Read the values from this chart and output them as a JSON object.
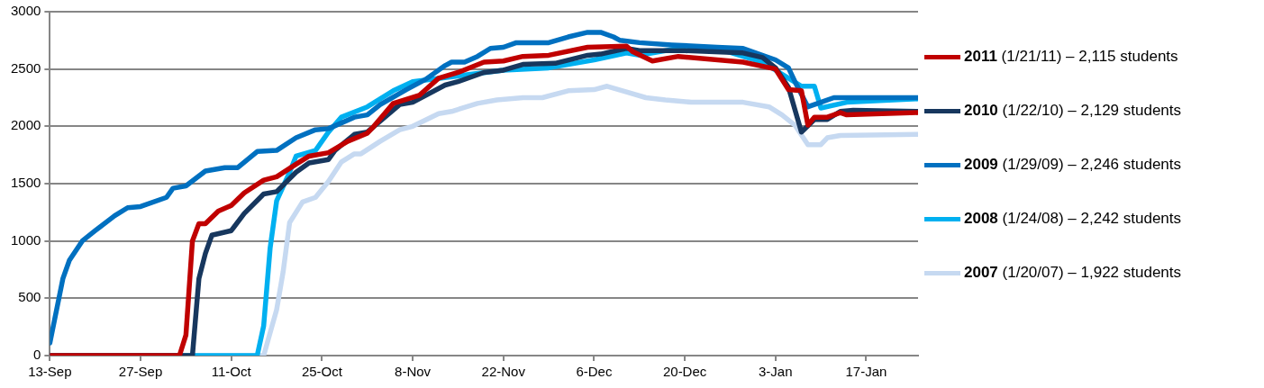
{
  "chart_data": {
    "type": "line",
    "xlim": [
      "2010-09-13",
      "2011-01-25"
    ],
    "ylim": [
      0,
      3000
    ],
    "xticks": [
      {
        "value": "2010-09-13",
        "label": "13-Sep"
      },
      {
        "value": "2010-09-27",
        "label": "27-Sep"
      },
      {
        "value": "2010-10-11",
        "label": "11-Oct"
      },
      {
        "value": "2010-10-25",
        "label": "25-Oct"
      },
      {
        "value": "2010-11-08",
        "label": "8-Nov"
      },
      {
        "value": "2010-11-22",
        "label": "22-Nov"
      },
      {
        "value": "2010-12-06",
        "label": "6-Dec"
      },
      {
        "value": "2010-12-20",
        "label": "20-Dec"
      },
      {
        "value": "2011-01-03",
        "label": "3-Jan"
      },
      {
        "value": "2011-01-17",
        "label": "17-Jan"
      }
    ],
    "yticks": [
      0,
      500,
      1000,
      1500,
      2000,
      2500,
      3000
    ],
    "grid": "y",
    "legend": "right",
    "line_style": "solid",
    "series": [
      {
        "name": "2011 (1/21/11) – 2,115 students",
        "color": "#c00000",
        "x": [
          "2010-09-13",
          "2010-10-03",
          "2010-10-04",
          "2010-10-05",
          "2010-10-06",
          "2010-10-07",
          "2010-10-09",
          "2010-10-11",
          "2010-10-13",
          "2010-10-16",
          "2010-10-18",
          "2010-10-21",
          "2010-10-23",
          "2010-10-26",
          "2010-10-29",
          "2010-11-01",
          "2010-11-02",
          "2010-11-05",
          "2010-11-09",
          "2010-11-12",
          "2010-11-15",
          "2010-11-19",
          "2010-11-22",
          "2010-11-25",
          "2010-11-29",
          "2010-12-05",
          "2010-12-11",
          "2010-12-12",
          "2010-12-15",
          "2010-12-19",
          "2010-12-29",
          "2011-01-03",
          "2011-01-05",
          "2011-01-07",
          "2011-01-08",
          "2011-01-09",
          "2011-01-11",
          "2011-01-13",
          "2011-01-14",
          "2011-01-25"
        ],
        "values": [
          0,
          0,
          180,
          1000,
          1150,
          1150,
          1260,
          1310,
          1420,
          1530,
          1560,
          1670,
          1740,
          1770,
          1870,
          1940,
          2000,
          2200,
          2270,
          2420,
          2470,
          2560,
          2570,
          2610,
          2620,
          2690,
          2700,
          2650,
          2570,
          2610,
          2560,
          2500,
          2320,
          2310,
          2010,
          2080,
          2080,
          2120,
          2100,
          2120
        ]
      },
      {
        "name": "2010 (1/22/10) – 2,129 students",
        "color": "#17375e",
        "x": [
          "2010-09-13",
          "2010-10-05",
          "2010-10-06",
          "2010-10-07",
          "2010-10-08",
          "2010-10-11",
          "2010-10-13",
          "2010-10-16",
          "2010-10-18",
          "2010-10-21",
          "2010-10-23",
          "2010-10-26",
          "2010-10-27",
          "2010-10-30",
          "2010-11-01",
          "2010-11-06",
          "2010-11-08",
          "2010-11-13",
          "2010-11-15",
          "2010-11-19",
          "2010-11-22",
          "2010-11-25",
          "2010-11-30",
          "2010-12-05",
          "2010-12-07",
          "2010-12-11",
          "2010-12-13",
          "2010-12-20",
          "2010-12-29",
          "2011-01-01",
          "2011-01-03",
          "2011-01-05",
          "2011-01-07",
          "2011-01-09",
          "2011-01-11",
          "2011-01-13",
          "2011-01-15",
          "2011-01-25"
        ],
        "values": [
          0,
          0,
          670,
          890,
          1050,
          1090,
          1240,
          1410,
          1430,
          1600,
          1680,
          1710,
          1790,
          1930,
          1950,
          2190,
          2210,
          2360,
          2390,
          2470,
          2490,
          2540,
          2550,
          2620,
          2630,
          2680,
          2660,
          2660,
          2640,
          2600,
          2510,
          2340,
          1950,
          2060,
          2060,
          2130,
          2140,
          2130
        ]
      },
      {
        "name": "2009 (1/29/09) – 2,246 students",
        "color": "#0070c0",
        "x": [
          "2010-09-13",
          "2010-09-15",
          "2010-09-16",
          "2010-09-18",
          "2010-09-20",
          "2010-09-23",
          "2010-09-25",
          "2010-09-27",
          "2010-10-01",
          "2010-10-02",
          "2010-10-04",
          "2010-10-07",
          "2010-10-10",
          "2010-10-12",
          "2010-10-15",
          "2010-10-18",
          "2010-10-21",
          "2010-10-24",
          "2010-10-26",
          "2010-10-30",
          "2010-11-01",
          "2010-11-03",
          "2010-11-07",
          "2010-11-10",
          "2010-11-13",
          "2010-11-14",
          "2010-11-16",
          "2010-11-18",
          "2010-11-20",
          "2010-11-22",
          "2010-11-24",
          "2010-11-27",
          "2010-11-29",
          "2010-12-02",
          "2010-12-05",
          "2010-12-07",
          "2010-12-09",
          "2010-12-10",
          "2010-12-13",
          "2010-12-18",
          "2010-12-25",
          "2010-12-29",
          "2011-01-03",
          "2011-01-05",
          "2011-01-06",
          "2011-01-08",
          "2011-01-10",
          "2011-01-12",
          "2011-01-15",
          "2011-01-25"
        ],
        "values": [
          110,
          670,
          830,
          1000,
          1090,
          1220,
          1290,
          1300,
          1380,
          1460,
          1480,
          1610,
          1640,
          1640,
          1780,
          1790,
          1900,
          1970,
          1980,
          2080,
          2100,
          2190,
          2320,
          2410,
          2530,
          2560,
          2560,
          2610,
          2680,
          2690,
          2730,
          2730,
          2730,
          2780,
          2820,
          2820,
          2780,
          2750,
          2730,
          2710,
          2690,
          2680,
          2580,
          2510,
          2390,
          2170,
          2210,
          2250,
          2250,
          2250
        ]
      },
      {
        "name": "2008 (1/24/08) – 2,242 students",
        "color": "#00b0f0",
        "x": [
          "2010-09-13",
          "2010-10-15",
          "2010-10-16",
          "2010-10-17",
          "2010-10-18",
          "2010-10-20",
          "2010-10-21",
          "2010-10-24",
          "2010-10-26",
          "2010-10-28",
          "2010-11-01",
          "2010-11-05",
          "2010-11-08",
          "2010-11-22",
          "2010-11-29",
          "2010-12-06",
          "2010-12-11",
          "2010-12-13",
          "2010-12-19",
          "2010-12-25",
          "2011-01-01",
          "2011-01-05",
          "2011-01-07",
          "2011-01-09",
          "2011-01-10",
          "2011-01-14",
          "2011-01-25"
        ],
        "values": [
          0,
          0,
          260,
          940,
          1350,
          1600,
          1740,
          1790,
          1950,
          2080,
          2170,
          2310,
          2390,
          2490,
          2510,
          2580,
          2640,
          2620,
          2680,
          2680,
          2560,
          2420,
          2350,
          2350,
          2160,
          2210,
          2240
        ]
      },
      {
        "name": "2007 (1/20/07) – 1,922 students",
        "color": "#c6d9f1",
        "x": [
          "2010-09-13",
          "2010-10-16",
          "2010-10-18",
          "2010-10-19",
          "2010-10-20",
          "2010-10-22",
          "2010-10-24",
          "2010-10-26",
          "2010-10-28",
          "2010-10-30",
          "2010-10-31",
          "2010-11-03",
          "2010-11-06",
          "2010-11-08",
          "2010-11-12",
          "2010-11-14",
          "2010-11-18",
          "2010-11-21",
          "2010-11-25",
          "2010-11-28",
          "2010-12-02",
          "2010-12-06",
          "2010-12-08",
          "2010-12-11",
          "2010-12-14",
          "2010-12-17",
          "2010-12-21",
          "2010-12-29",
          "2011-01-02",
          "2011-01-04",
          "2011-01-06",
          "2011-01-08",
          "2011-01-10",
          "2011-01-11",
          "2011-01-13",
          "2011-01-25"
        ],
        "values": [
          0,
          0,
          400,
          730,
          1160,
          1340,
          1380,
          1520,
          1690,
          1760,
          1760,
          1870,
          1970,
          2000,
          2110,
          2130,
          2200,
          2230,
          2250,
          2250,
          2310,
          2320,
          2350,
          2300,
          2250,
          2230,
          2210,
          2210,
          2170,
          2100,
          2010,
          1840,
          1840,
          1900,
          1920,
          1930
        ]
      }
    ]
  }
}
